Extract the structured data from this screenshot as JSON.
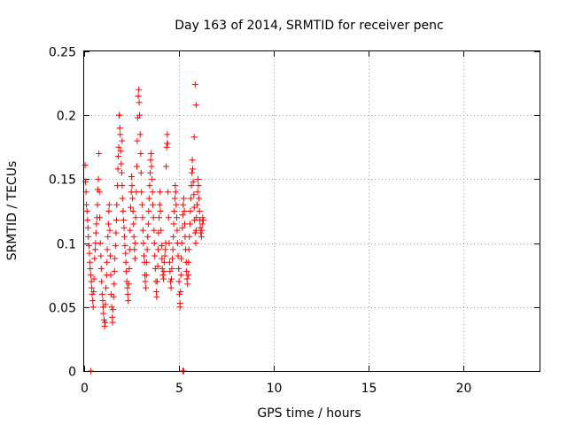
{
  "chart_data": {
    "type": "scatter",
    "title": "Day 163 of 2014, SRMTID for receiver penc",
    "xlabel": "GPS time / hours",
    "ylabel": "SRMTID / TECUs",
    "xlim": [
      0,
      24
    ],
    "ylim": [
      0,
      0.25
    ],
    "xticks": [
      0,
      5,
      10,
      15,
      20
    ],
    "xtick_labels": [
      "0",
      "5",
      "10",
      "15",
      "20"
    ],
    "yticks": [
      0,
      0.05,
      0.1,
      0.15,
      0.2,
      0.25
    ],
    "ytick_labels": [
      "0",
      "0.05",
      "0.1",
      "0.15",
      "0.2",
      "0.25"
    ],
    "grid": true,
    "marker": "+",
    "color": "#ff0000",
    "series": [
      {
        "name": "SRMTID",
        "points": [
          [
            0.05,
            0.161
          ],
          [
            0.07,
            0.148
          ],
          [
            0.1,
            0.14
          ],
          [
            0.12,
            0.13
          ],
          [
            0.15,
            0.125
          ],
          [
            0.18,
            0.118
          ],
          [
            0.2,
            0.112
          ],
          [
            0.22,
            0.105
          ],
          [
            0.25,
            0.098
          ],
          [
            0.28,
            0.092
          ],
          [
            0.3,
            0.085
          ],
          [
            0.32,
            0.08
          ],
          [
            0.35,
            0.075
          ],
          [
            0.38,
            0.07
          ],
          [
            0.4,
            0.065
          ],
          [
            0.42,
            0.06
          ],
          [
            0.45,
            0.055
          ],
          [
            0.48,
            0.05
          ],
          [
            0.5,
            0.062
          ],
          [
            0.52,
            0.072
          ],
          [
            0.55,
            0.088
          ],
          [
            0.58,
            0.095
          ],
          [
            0.6,
            0.1
          ],
          [
            0.62,
            0.108
          ],
          [
            0.65,
            0.115
          ],
          [
            0.68,
            0.12
          ],
          [
            0.7,
            0.13
          ],
          [
            0.72,
            0.142
          ],
          [
            0.75,
            0.15
          ],
          [
            0.78,
            0.17
          ],
          [
            0.8,
            0.14
          ],
          [
            0.82,
            0.12
          ],
          [
            0.85,
            0.1
          ],
          [
            0.88,
            0.09
          ],
          [
            0.9,
            0.08
          ],
          [
            0.92,
            0.07
          ],
          [
            0.95,
            0.06
          ],
          [
            0.98,
            0.055
          ],
          [
            1.0,
            0.05
          ],
          [
            1.02,
            0.045
          ],
          [
            1.05,
            0.04
          ],
          [
            1.08,
            0.035
          ],
          [
            1.1,
            0.038
          ],
          [
            1.12,
            0.052
          ],
          [
            1.15,
            0.065
          ],
          [
            1.18,
            0.075
          ],
          [
            1.2,
            0.085
          ],
          [
            1.22,
            0.095
          ],
          [
            1.25,
            0.105
          ],
          [
            1.28,
            0.115
          ],
          [
            1.3,
            0.125
          ],
          [
            1.32,
            0.13
          ],
          [
            1.35,
            0.11
          ],
          [
            1.38,
            0.09
          ],
          [
            1.4,
            0.075
          ],
          [
            1.42,
            0.06
          ],
          [
            1.45,
            0.05
          ],
          [
            1.48,
            0.042
          ],
          [
            1.5,
            0.038
          ],
          [
            1.52,
            0.048
          ],
          [
            1.55,
            0.058
          ],
          [
            1.58,
            0.068
          ],
          [
            1.6,
            0.078
          ],
          [
            1.62,
            0.088
          ],
          [
            1.65,
            0.098
          ],
          [
            1.68,
            0.108
          ],
          [
            1.7,
            0.118
          ],
          [
            1.72,
            0.13
          ],
          [
            1.75,
            0.145
          ],
          [
            1.78,
            0.158
          ],
          [
            1.8,
            0.168
          ],
          [
            1.82,
            0.175
          ],
          [
            1.85,
            0.2
          ],
          [
            1.88,
            0.19
          ],
          [
            1.9,
            0.185
          ],
          [
            1.92,
            0.172
          ],
          [
            1.95,
            0.162
          ],
          [
            1.98,
            0.155
          ],
          [
            2.0,
            0.145
          ],
          [
            2.02,
            0.135
          ],
          [
            2.05,
            0.125
          ],
          [
            2.08,
            0.118
          ],
          [
            2.1,
            0.112
          ],
          [
            2.12,
            0.105
          ],
          [
            2.15,
            0.098
          ],
          [
            2.18,
            0.092
          ],
          [
            2.2,
            0.085
          ],
          [
            2.22,
            0.078
          ],
          [
            2.25,
            0.07
          ],
          [
            2.28,
            0.065
          ],
          [
            2.3,
            0.06
          ],
          [
            2.32,
            0.055
          ],
          [
            2.35,
            0.068
          ],
          [
            2.38,
            0.08
          ],
          [
            2.4,
            0.095
          ],
          [
            2.42,
            0.11
          ],
          [
            2.45,
            0.128
          ],
          [
            2.48,
            0.14
          ],
          [
            2.5,
            0.152
          ],
          [
            2.52,
            0.145
          ],
          [
            2.55,
            0.135
          ],
          [
            2.58,
            0.125
          ],
          [
            2.6,
            0.115
          ],
          [
            2.62,
            0.105
          ],
          [
            2.65,
            0.095
          ],
          [
            2.68,
            0.088
          ],
          [
            2.7,
            0.1
          ],
          [
            2.72,
            0.12
          ],
          [
            2.75,
            0.14
          ],
          [
            2.78,
            0.16
          ],
          [
            2.8,
            0.18
          ],
          [
            2.82,
            0.198
          ],
          [
            2.85,
            0.215
          ],
          [
            2.88,
            0.22
          ],
          [
            2.9,
            0.21
          ],
          [
            2.92,
            0.2
          ],
          [
            2.95,
            0.185
          ],
          [
            2.98,
            0.17
          ],
          [
            3.0,
            0.155
          ],
          [
            3.02,
            0.14
          ],
          [
            3.05,
            0.13
          ],
          [
            3.08,
            0.12
          ],
          [
            3.1,
            0.11
          ],
          [
            3.12,
            0.1
          ],
          [
            3.15,
            0.09
          ],
          [
            3.18,
            0.085
          ],
          [
            3.2,
            0.075
          ],
          [
            3.22,
            0.07
          ],
          [
            3.25,
            0.065
          ],
          [
            3.28,
            0.075
          ],
          [
            3.3,
            0.085
          ],
          [
            3.32,
            0.095
          ],
          [
            3.35,
            0.105
          ],
          [
            3.38,
            0.115
          ],
          [
            3.4,
            0.125
          ],
          [
            3.42,
            0.135
          ],
          [
            3.45,
            0.145
          ],
          [
            3.48,
            0.155
          ],
          [
            3.5,
            0.165
          ],
          [
            3.52,
            0.17
          ],
          [
            3.55,
            0.16
          ],
          [
            3.58,
            0.15
          ],
          [
            3.6,
            0.14
          ],
          [
            3.62,
            0.13
          ],
          [
            3.65,
            0.12
          ],
          [
            3.68,
            0.11
          ],
          [
            3.7,
            0.1
          ],
          [
            3.72,
            0.09
          ],
          [
            3.75,
            0.08
          ],
          [
            3.78,
            0.07
          ],
          [
            3.8,
            0.062
          ],
          [
            3.82,
            0.058
          ],
          [
            3.85,
            0.07
          ],
          [
            3.88,
            0.082
          ],
          [
            3.9,
            0.095
          ],
          [
            3.92,
            0.108
          ],
          [
            3.95,
            0.12
          ],
          [
            3.98,
            0.13
          ],
          [
            4.0,
            0.14
          ],
          [
            4.02,
            0.125
          ],
          [
            4.05,
            0.11
          ],
          [
            4.08,
            0.098
          ],
          [
            4.1,
            0.088
          ],
          [
            4.12,
            0.08
          ],
          [
            4.15,
            0.075
          ],
          [
            4.18,
            0.072
          ],
          [
            4.2,
            0.078
          ],
          [
            4.22,
            0.085
          ],
          [
            4.25,
            0.09
          ],
          [
            4.28,
            0.095
          ],
          [
            4.3,
            0.1
          ],
          [
            4.32,
            0.16
          ],
          [
            4.35,
            0.175
          ],
          [
            4.38,
            0.185
          ],
          [
            4.4,
            0.178
          ],
          [
            4.42,
            0.14
          ],
          [
            4.45,
            0.12
          ],
          [
            4.48,
            0.1
          ],
          [
            4.5,
            0.085
          ],
          [
            4.52,
            0.078
          ],
          [
            4.55,
            0.07
          ],
          [
            4.58,
            0.065
          ],
          [
            4.6,
            0.072
          ],
          [
            4.62,
            0.08
          ],
          [
            4.65,
            0.088
          ],
          [
            4.68,
            0.095
          ],
          [
            4.7,
            0.105
          ],
          [
            4.72,
            0.115
          ],
          [
            4.75,
            0.125
          ],
          [
            4.78,
            0.135
          ],
          [
            4.8,
            0.145
          ],
          [
            4.82,
            0.14
          ],
          [
            4.85,
            0.13
          ],
          [
            4.88,
            0.12
          ],
          [
            4.9,
            0.11
          ],
          [
            4.92,
            0.1
          ],
          [
            4.95,
            0.09
          ],
          [
            4.98,
            0.08
          ],
          [
            5.0,
            0.07
          ],
          [
            5.02,
            0.06
          ],
          [
            5.05,
            0.05
          ],
          [
            5.08,
            0.062
          ],
          [
            5.1,
            0.075
          ],
          [
            5.12,
            0.088
          ],
          [
            5.15,
            0.1
          ],
          [
            5.18,
            0.112
          ],
          [
            5.2,
            0.122
          ],
          [
            5.22,
            0.13
          ],
          [
            5.25,
            0.135
          ],
          [
            5.28,
            0.125
          ],
          [
            5.3,
            0.115
          ],
          [
            5.32,
            0.105
          ],
          [
            5.35,
            0.095
          ],
          [
            5.38,
            0.085
          ],
          [
            5.4,
            0.078
          ],
          [
            5.42,
            0.072
          ],
          [
            5.45,
            0.068
          ],
          [
            5.48,
            0.075
          ],
          [
            5.5,
            0.085
          ],
          [
            5.52,
            0.095
          ],
          [
            5.55,
            0.105
          ],
          [
            5.58,
            0.115
          ],
          [
            5.6,
            0.125
          ],
          [
            5.62,
            0.135
          ],
          [
            5.65,
            0.145
          ],
          [
            5.68,
            0.155
          ],
          [
            5.7,
            0.165
          ],
          [
            5.72,
            0.158
          ],
          [
            5.75,
            0.148
          ],
          [
            5.78,
            0.138
          ],
          [
            5.8,
            0.128
          ],
          [
            5.82,
            0.118
          ],
          [
            5.85,
            0.108
          ],
          [
            5.88,
            0.1
          ],
          [
            5.9,
            0.11
          ],
          [
            5.92,
            0.12
          ],
          [
            5.95,
            0.13
          ],
          [
            5.98,
            0.14
          ],
          [
            6.0,
            0.15
          ],
          [
            6.02,
            0.145
          ],
          [
            6.05,
            0.135
          ],
          [
            6.08,
            0.125
          ],
          [
            6.1,
            0.118
          ],
          [
            6.12,
            0.112
          ],
          [
            6.15,
            0.108
          ],
          [
            6.18,
            0.105
          ],
          [
            6.2,
            0.11
          ],
          [
            6.22,
            0.115
          ],
          [
            6.25,
            0.12
          ],
          [
            6.28,
            0.118
          ],
          [
            5.85,
            0.224
          ],
          [
            5.9,
            0.208
          ],
          [
            5.8,
            0.183
          ],
          [
            4.38,
            0.178
          ],
          [
            2.0,
            0.18
          ],
          [
            1.85,
            0.2
          ],
          [
            5.05,
            0.053
          ],
          [
            0.35,
            0.0
          ],
          [
            5.2,
            0.0
          ],
          [
            5.25,
            0.0
          ],
          [
            5.22,
            0.0
          ]
        ]
      }
    ]
  }
}
